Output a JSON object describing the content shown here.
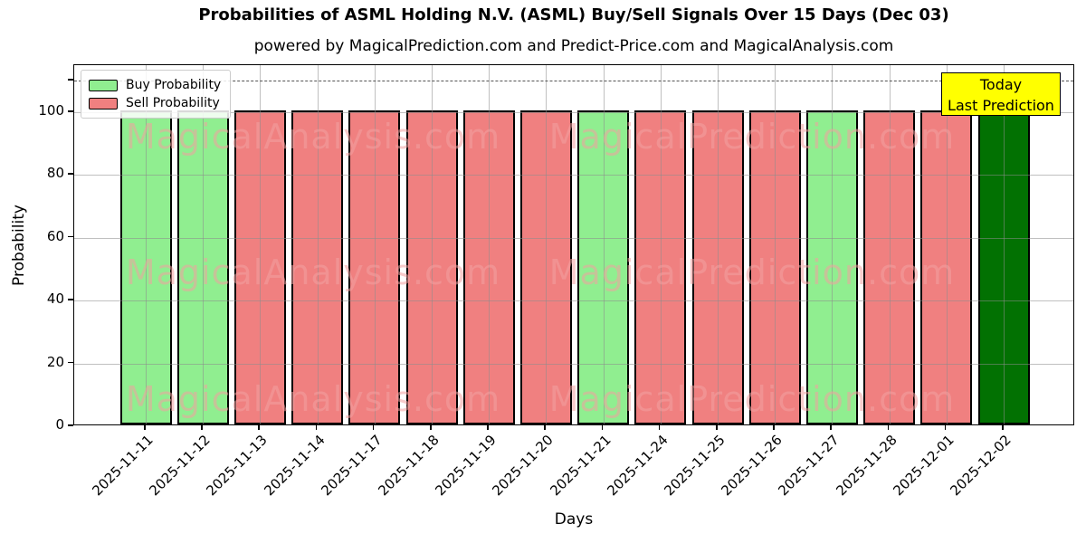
{
  "chart_data": {
    "type": "bar",
    "title": "Probabilities of ASML Holding N.V. (ASML) Buy/Sell Signals Over 15 Days (Dec 03)",
    "subtitle": "powered by MagicalPrediction.com and Predict-Price.com and MagicalAnalysis.com",
    "xlabel": "Days",
    "ylabel": "Probability",
    "ylim": [
      0,
      115
    ],
    "yticks": [
      0,
      20,
      40,
      60,
      80,
      100
    ],
    "dashed_line_y": 110,
    "grid": true,
    "legend_position": "upper left",
    "categories": [
      "2025-11-11",
      "2025-11-12",
      "2025-11-13",
      "2025-11-14",
      "2025-11-17",
      "2025-11-18",
      "2025-11-19",
      "2025-11-20",
      "2025-11-21",
      "2025-11-24",
      "2025-11-25",
      "2025-11-26",
      "2025-11-27",
      "2025-11-28",
      "2025-12-01",
      "2025-12-02"
    ],
    "values": [
      100,
      100,
      100,
      100,
      100,
      100,
      100,
      100,
      100,
      100,
      100,
      100,
      100,
      100,
      100,
      100
    ],
    "signals": [
      "buy",
      "buy",
      "sell",
      "sell",
      "sell",
      "sell",
      "sell",
      "sell",
      "buy",
      "sell",
      "sell",
      "sell",
      "buy",
      "sell",
      "sell",
      "today"
    ],
    "colors": {
      "buy": "#90ee90",
      "sell": "#f08080",
      "today": "#027102"
    },
    "legend": {
      "items": [
        {
          "label": "Buy Probability",
          "color": "#90ee90"
        },
        {
          "label": "Sell Probability",
          "color": "#f08080"
        }
      ]
    },
    "annotation": {
      "line1": "Today",
      "line2": "Last Prediction",
      "bg": "#ffff00"
    },
    "watermarks": {
      "left": "MagicalAnalysis.com",
      "right": "MagicalPrediction.com"
    }
  }
}
